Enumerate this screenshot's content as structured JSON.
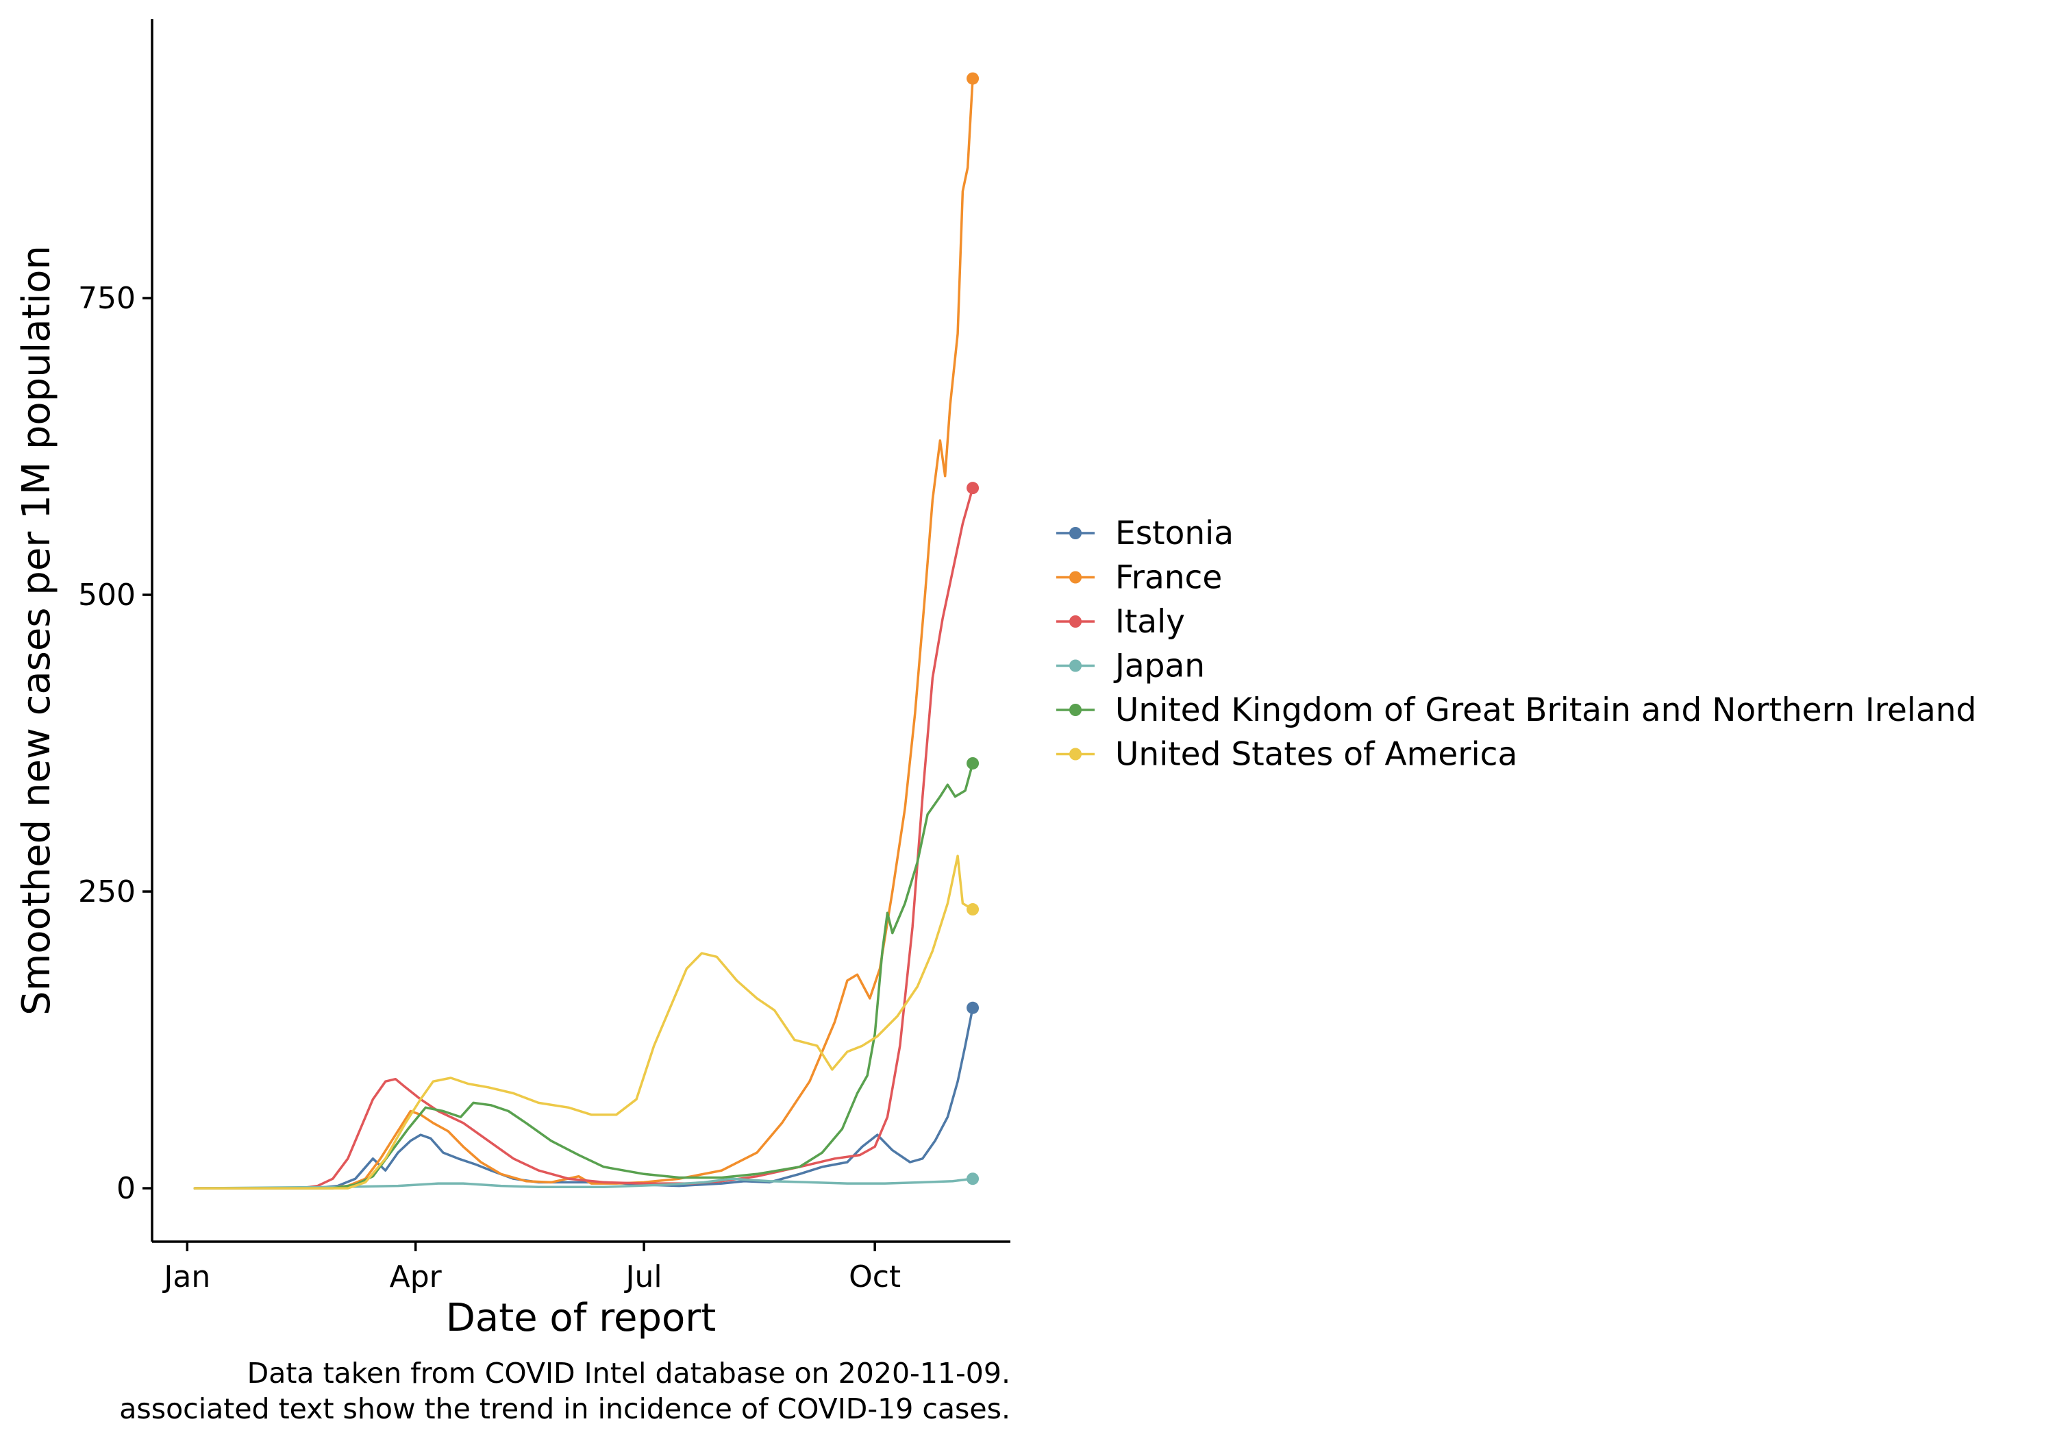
{
  "chart_data": {
    "type": "line",
    "title": "",
    "xlabel": "Date of report",
    "ylabel": "Smoothed new cases per 1M population",
    "x_ticks": [
      {
        "label": "Jan",
        "date": "2020-01-01"
      },
      {
        "label": "Apr",
        "date": "2020-04-01"
      },
      {
        "label": "Jul",
        "date": "2020-07-01"
      },
      {
        "label": "Oct",
        "date": "2020-10-01"
      }
    ],
    "y_ticks": [
      0,
      250,
      500,
      750
    ],
    "xlim": [
      "2019-12-18",
      "2020-11-24"
    ],
    "ylim": [
      -45,
      985
    ],
    "grid": false,
    "legend_position": "right",
    "caption": [
      "Data taken from COVID Intel database on 2020-11-09.",
      "associated text show the trend in incidence of COVID-19 cases."
    ],
    "series": [
      {
        "name": "Estonia",
        "color": "#4E79A7",
        "points": [
          [
            "2020-01-04",
            0
          ],
          [
            "2020-02-20",
            0
          ],
          [
            "2020-03-01",
            2
          ],
          [
            "2020-03-08",
            8
          ],
          [
            "2020-03-15",
            25
          ],
          [
            "2020-03-20",
            15
          ],
          [
            "2020-03-25",
            30
          ],
          [
            "2020-03-30",
            40
          ],
          [
            "2020-04-03",
            45
          ],
          [
            "2020-04-07",
            42
          ],
          [
            "2020-04-12",
            30
          ],
          [
            "2020-04-18",
            25
          ],
          [
            "2020-04-25",
            20
          ],
          [
            "2020-05-01",
            15
          ],
          [
            "2020-05-10",
            8
          ],
          [
            "2020-05-20",
            5
          ],
          [
            "2020-06-01",
            5
          ],
          [
            "2020-06-15",
            5
          ],
          [
            "2020-07-01",
            3
          ],
          [
            "2020-07-15",
            2
          ],
          [
            "2020-08-01",
            4
          ],
          [
            "2020-08-10",
            6
          ],
          [
            "2020-08-20",
            5
          ],
          [
            "2020-09-01",
            12
          ],
          [
            "2020-09-10",
            18
          ],
          [
            "2020-09-20",
            22
          ],
          [
            "2020-09-26",
            35
          ],
          [
            "2020-10-02",
            45
          ],
          [
            "2020-10-08",
            32
          ],
          [
            "2020-10-15",
            22
          ],
          [
            "2020-10-20",
            25
          ],
          [
            "2020-10-25",
            40
          ],
          [
            "2020-10-30",
            60
          ],
          [
            "2020-11-03",
            90
          ],
          [
            "2020-11-06",
            120
          ],
          [
            "2020-11-09",
            152
          ]
        ]
      },
      {
        "name": "France",
        "color": "#F28E2B",
        "points": [
          [
            "2020-01-04",
            0
          ],
          [
            "2020-02-25",
            0
          ],
          [
            "2020-03-05",
            2
          ],
          [
            "2020-03-12",
            8
          ],
          [
            "2020-03-18",
            25
          ],
          [
            "2020-03-24",
            45
          ],
          [
            "2020-03-30",
            65
          ],
          [
            "2020-04-03",
            62
          ],
          [
            "2020-04-08",
            55
          ],
          [
            "2020-04-14",
            48
          ],
          [
            "2020-04-20",
            35
          ],
          [
            "2020-04-27",
            22
          ],
          [
            "2020-05-05",
            12
          ],
          [
            "2020-05-15",
            6
          ],
          [
            "2020-05-25",
            5
          ],
          [
            "2020-06-05",
            10
          ],
          [
            "2020-06-10",
            4
          ],
          [
            "2020-06-20",
            4
          ],
          [
            "2020-07-01",
            5
          ],
          [
            "2020-07-15",
            8
          ],
          [
            "2020-08-01",
            15
          ],
          [
            "2020-08-15",
            30
          ],
          [
            "2020-08-25",
            55
          ],
          [
            "2020-09-05",
            90
          ],
          [
            "2020-09-15",
            140
          ],
          [
            "2020-09-20",
            175
          ],
          [
            "2020-09-24",
            180
          ],
          [
            "2020-09-29",
            160
          ],
          [
            "2020-10-03",
            185
          ],
          [
            "2020-10-08",
            250
          ],
          [
            "2020-10-13",
            320
          ],
          [
            "2020-10-17",
            400
          ],
          [
            "2020-10-21",
            500
          ],
          [
            "2020-10-24",
            580
          ],
          [
            "2020-10-27",
            630
          ],
          [
            "2020-10-29",
            600
          ],
          [
            "2020-10-31",
            660
          ],
          [
            "2020-11-03",
            720
          ],
          [
            "2020-11-05",
            840
          ],
          [
            "2020-11-07",
            860
          ],
          [
            "2020-11-09",
            935
          ]
        ]
      },
      {
        "name": "Italy",
        "color": "#E15759",
        "points": [
          [
            "2020-01-04",
            0
          ],
          [
            "2020-02-15",
            0
          ],
          [
            "2020-02-22",
            2
          ],
          [
            "2020-02-28",
            8
          ],
          [
            "2020-03-05",
            25
          ],
          [
            "2020-03-10",
            50
          ],
          [
            "2020-03-15",
            75
          ],
          [
            "2020-03-20",
            90
          ],
          [
            "2020-03-24",
            92
          ],
          [
            "2020-03-28",
            85
          ],
          [
            "2020-04-03",
            75
          ],
          [
            "2020-04-10",
            65
          ],
          [
            "2020-04-20",
            55
          ],
          [
            "2020-04-30",
            40
          ],
          [
            "2020-05-10",
            25
          ],
          [
            "2020-05-20",
            15
          ],
          [
            "2020-06-01",
            8
          ],
          [
            "2020-06-15",
            5
          ],
          [
            "2020-07-01",
            4
          ],
          [
            "2020-07-20",
            4
          ],
          [
            "2020-08-01",
            6
          ],
          [
            "2020-08-15",
            10
          ],
          [
            "2020-09-01",
            18
          ],
          [
            "2020-09-15",
            25
          ],
          [
            "2020-09-25",
            28
          ],
          [
            "2020-10-01",
            35
          ],
          [
            "2020-10-06",
            60
          ],
          [
            "2020-10-11",
            120
          ],
          [
            "2020-10-16",
            220
          ],
          [
            "2020-10-20",
            330
          ],
          [
            "2020-10-24",
            430
          ],
          [
            "2020-10-28",
            480
          ],
          [
            "2020-11-02",
            530
          ],
          [
            "2020-11-05",
            560
          ],
          [
            "2020-11-09",
            590
          ]
        ]
      },
      {
        "name": "Japan",
        "color": "#76B7B2",
        "points": [
          [
            "2020-01-04",
            0
          ],
          [
            "2020-03-01",
            1
          ],
          [
            "2020-03-25",
            2
          ],
          [
            "2020-04-10",
            4
          ],
          [
            "2020-04-20",
            4
          ],
          [
            "2020-05-05",
            2
          ],
          [
            "2020-05-20",
            1
          ],
          [
            "2020-06-15",
            1
          ],
          [
            "2020-07-10",
            3
          ],
          [
            "2020-07-25",
            5
          ],
          [
            "2020-08-05",
            8
          ],
          [
            "2020-08-20",
            6
          ],
          [
            "2020-09-05",
            5
          ],
          [
            "2020-09-20",
            4
          ],
          [
            "2020-10-05",
            4
          ],
          [
            "2020-10-20",
            5
          ],
          [
            "2020-11-01",
            6
          ],
          [
            "2020-11-09",
            8
          ]
        ]
      },
      {
        "name": "United Kingdom of Great Britain and Northern Ireland",
        "color": "#59A14F",
        "points": [
          [
            "2020-01-04",
            0
          ],
          [
            "2020-02-28",
            0
          ],
          [
            "2020-03-08",
            3
          ],
          [
            "2020-03-15",
            10
          ],
          [
            "2020-03-22",
            30
          ],
          [
            "2020-03-29",
            50
          ],
          [
            "2020-04-05",
            68
          ],
          [
            "2020-04-12",
            65
          ],
          [
            "2020-04-19",
            60
          ],
          [
            "2020-04-24",
            72
          ],
          [
            "2020-05-01",
            70
          ],
          [
            "2020-05-08",
            65
          ],
          [
            "2020-05-15",
            55
          ],
          [
            "2020-05-25",
            40
          ],
          [
            "2020-06-05",
            28
          ],
          [
            "2020-06-15",
            18
          ],
          [
            "2020-07-01",
            12
          ],
          [
            "2020-07-15",
            9
          ],
          [
            "2020-08-01",
            9
          ],
          [
            "2020-08-15",
            12
          ],
          [
            "2020-09-01",
            18
          ],
          [
            "2020-09-10",
            30
          ],
          [
            "2020-09-18",
            50
          ],
          [
            "2020-09-24",
            80
          ],
          [
            "2020-09-28",
            95
          ],
          [
            "2020-10-01",
            130
          ],
          [
            "2020-10-04",
            200
          ],
          [
            "2020-10-06",
            232
          ],
          [
            "2020-10-08",
            215
          ],
          [
            "2020-10-13",
            240
          ],
          [
            "2020-10-18",
            275
          ],
          [
            "2020-10-22",
            315
          ],
          [
            "2020-10-27",
            330
          ],
          [
            "2020-10-30",
            340
          ],
          [
            "2020-11-02",
            330
          ],
          [
            "2020-11-06",
            335
          ],
          [
            "2020-11-09",
            358
          ]
        ]
      },
      {
        "name": "United States of America",
        "color": "#EDC948",
        "points": [
          [
            "2020-01-04",
            0
          ],
          [
            "2020-03-05",
            0
          ],
          [
            "2020-03-12",
            5
          ],
          [
            "2020-03-20",
            25
          ],
          [
            "2020-03-28",
            55
          ],
          [
            "2020-04-03",
            75
          ],
          [
            "2020-04-08",
            90
          ],
          [
            "2020-04-15",
            93
          ],
          [
            "2020-04-22",
            88
          ],
          [
            "2020-04-30",
            85
          ],
          [
            "2020-05-10",
            80
          ],
          [
            "2020-05-20",
            72
          ],
          [
            "2020-06-01",
            68
          ],
          [
            "2020-06-10",
            62
          ],
          [
            "2020-06-20",
            62
          ],
          [
            "2020-06-28",
            75
          ],
          [
            "2020-07-05",
            120
          ],
          [
            "2020-07-12",
            155
          ],
          [
            "2020-07-18",
            185
          ],
          [
            "2020-07-24",
            198
          ],
          [
            "2020-07-30",
            195
          ],
          [
            "2020-08-07",
            175
          ],
          [
            "2020-08-15",
            160
          ],
          [
            "2020-08-22",
            150
          ],
          [
            "2020-08-30",
            125
          ],
          [
            "2020-09-08",
            120
          ],
          [
            "2020-09-14",
            100
          ],
          [
            "2020-09-20",
            115
          ],
          [
            "2020-09-26",
            120
          ],
          [
            "2020-10-02",
            128
          ],
          [
            "2020-10-10",
            145
          ],
          [
            "2020-10-18",
            170
          ],
          [
            "2020-10-24",
            200
          ],
          [
            "2020-10-30",
            240
          ],
          [
            "2020-11-03",
            280
          ],
          [
            "2020-11-05",
            240
          ],
          [
            "2020-11-09",
            235
          ]
        ]
      }
    ]
  }
}
